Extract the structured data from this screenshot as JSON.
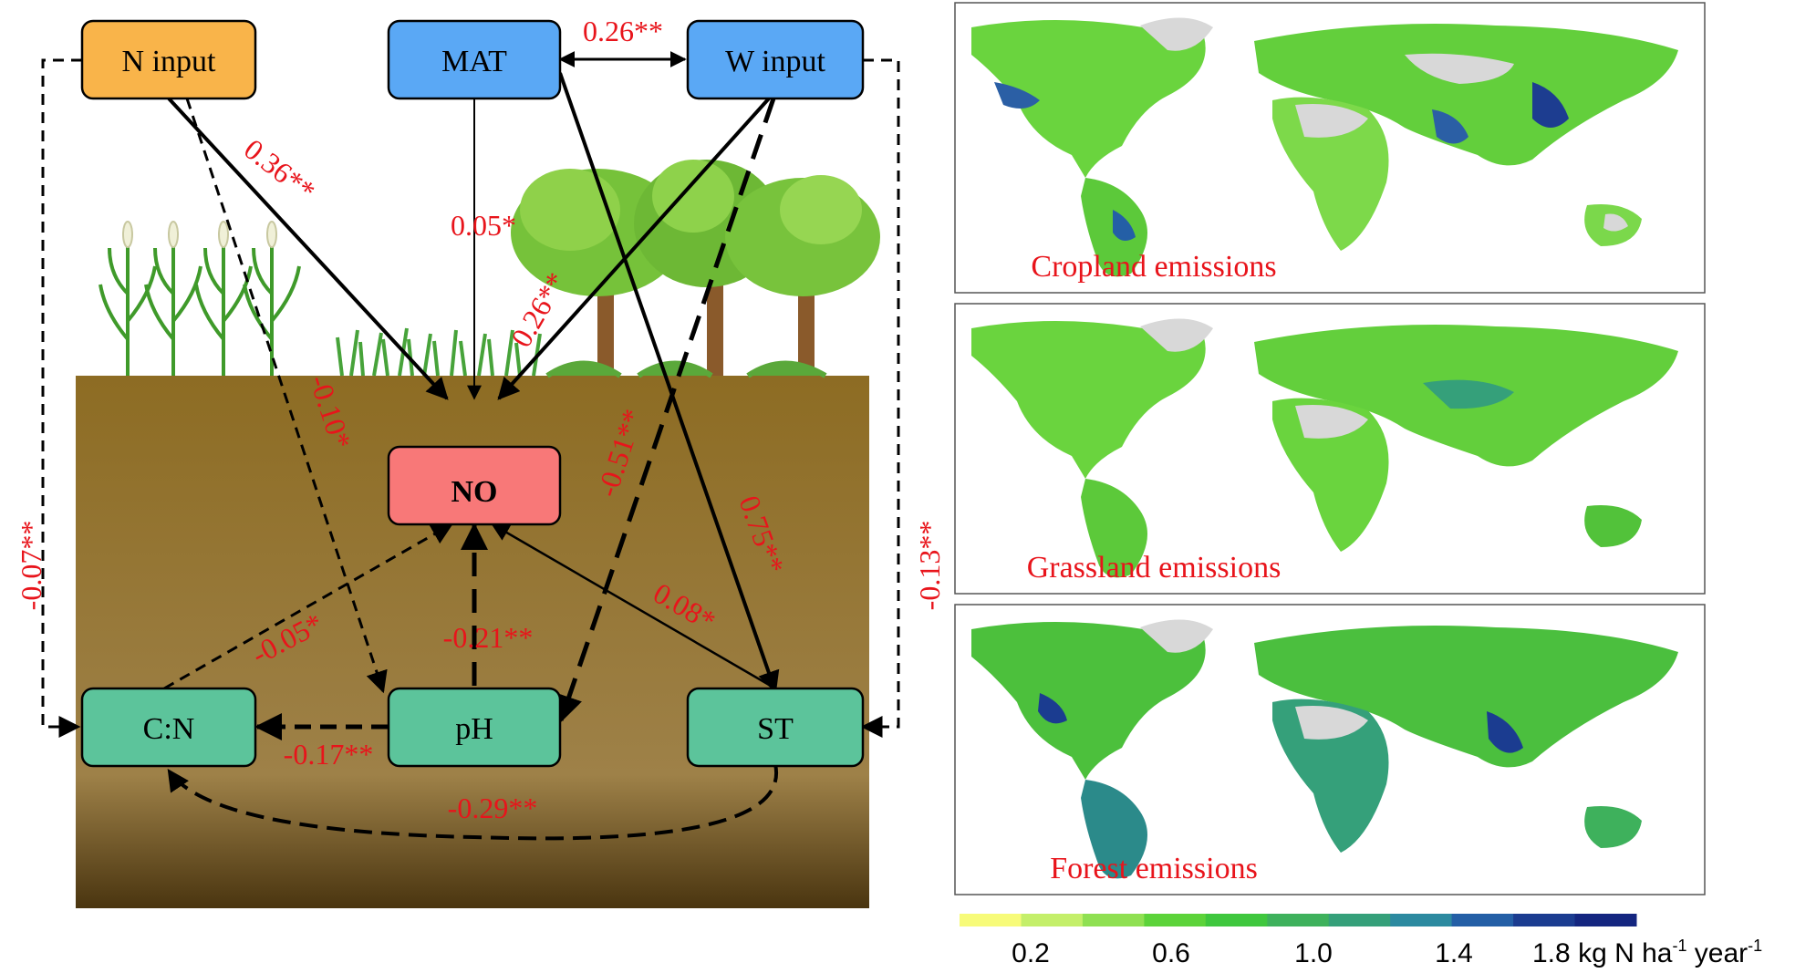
{
  "diagram": {
    "nodes": {
      "n_input": "N input",
      "mat": "MAT",
      "w_input": "W input",
      "no": "NO",
      "cn": "C:N",
      "ph": "pH",
      "st": "ST"
    },
    "paths": {
      "mat_w": "0.26**",
      "n_no": "0.36**",
      "mat_no": "0.05*",
      "w_no": "0.26**",
      "n_ph": "-0.10*",
      "w_ph": "-0.51**",
      "mat_st": "0.75**",
      "n_cn": "-0.07**",
      "w_st": "-0.13**",
      "cn_no": "-0.05*",
      "ph_no": "-0.21**",
      "st_no": "0.08*",
      "ph_cn": "-0.17**",
      "st_cn": "-0.29**"
    },
    "colors": {
      "n_input": "#f9b44a",
      "climate": "#5aa8f5",
      "no": "#f87878",
      "soil": "#5cc49b",
      "coefficient": "#e8141b",
      "soil_top": "#8c6c24",
      "soil_bottom": "#4a3510"
    }
  },
  "maps": {
    "panels": [
      {
        "label": "Cropland emissions"
      },
      {
        "label": "Grassland emissions"
      },
      {
        "label": "Forest emissions"
      }
    ],
    "colorbar": {
      "ticks": [
        "0.2",
        "0.6",
        "1.0",
        "1.4"
      ],
      "last_tick": "1.8",
      "unit": "kg N ha",
      "unit_sup1": "-1",
      "unit_mid": " year",
      "unit_sup2": "-1",
      "colors": [
        "#f7fb79",
        "#c4ef6a",
        "#8fe052",
        "#5cd33a",
        "#3fc73e",
        "#3eb15c",
        "#35a07a",
        "#2c8aa0",
        "#245fa6",
        "#1b3c90",
        "#142680"
      ]
    }
  }
}
